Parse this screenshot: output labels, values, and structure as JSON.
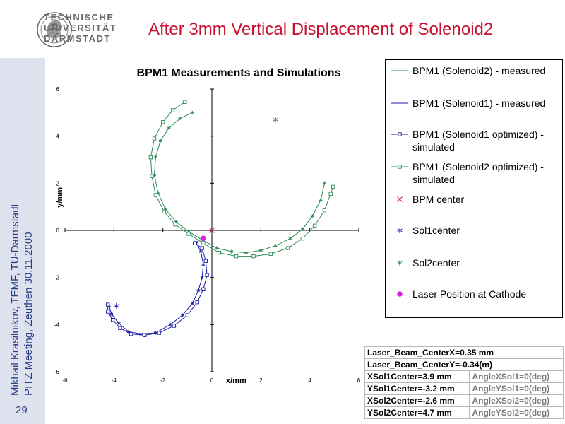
{
  "header": {
    "logo_lines": [
      "TECHNISCHE",
      "UNIVERSITÄT",
      "DARMSTADT"
    ],
    "title": "After 3mm Vertical Displacement of Solenoid2"
  },
  "sidebar": {
    "line1": "Mikhail Krasilnikov, TEMF, TU-Darmstadt",
    "line2": "PITZ Meeting, Zeuthen 30.11.2000",
    "page_number": "29"
  },
  "colors": {
    "title_red": "#c8102e",
    "sidebar_text": "#2b3f86",
    "sidebar_bg": "#dde2ee",
    "sol2": "#2e8b57",
    "sol1": "#1a1aa8",
    "bpm_center": "#c0187a",
    "laser": "#e020e0"
  },
  "chart_data": {
    "type": "scatter",
    "title": "BPM1 Measurements and Simulations",
    "xlabel": "x/mm",
    "ylabel": "y/mm",
    "xlim": [
      -6,
      6
    ],
    "ylim": [
      -6,
      6
    ],
    "xticks": [
      "-6",
      "-4",
      "-2",
      "0",
      "2",
      "4",
      "6"
    ],
    "yticks": [
      "-6",
      "-4",
      "-2",
      "0",
      "2",
      "4",
      "6"
    ],
    "grid": false,
    "legend_position": "right",
    "series": [
      {
        "name": "BPM1 (Solenoid2) - measured",
        "style": "line-star",
        "color": "#2e8b57",
        "points": [
          [
            -0.8,
            5.0
          ],
          [
            -1.3,
            4.75
          ],
          [
            -1.75,
            4.35
          ],
          [
            -2.1,
            3.8
          ],
          [
            -2.3,
            3.1
          ],
          [
            -2.35,
            2.35
          ],
          [
            -2.2,
            1.6
          ],
          [
            -1.9,
            0.9
          ],
          [
            -1.45,
            0.35
          ],
          [
            -0.95,
            -0.05
          ],
          [
            -0.4,
            -0.4
          ],
          [
            0.2,
            -0.75
          ],
          [
            0.8,
            -0.9
          ],
          [
            1.4,
            -0.95
          ],
          [
            2.0,
            -0.85
          ],
          [
            2.6,
            -0.65
          ],
          [
            3.2,
            -0.35
          ],
          [
            3.7,
            0.05
          ],
          [
            4.1,
            0.6
          ],
          [
            4.45,
            1.3
          ],
          [
            4.6,
            2.0
          ]
        ]
      },
      {
        "name": "BPM1 (Solenoid1) - measured",
        "style": "line-star",
        "color": "#1a1aa8",
        "points": [
          [
            -0.65,
            -0.5
          ],
          [
            -0.45,
            -0.9
          ],
          [
            -0.35,
            -1.45
          ],
          [
            -0.4,
            -2.0
          ],
          [
            -0.55,
            -2.55
          ],
          [
            -0.8,
            -3.1
          ],
          [
            -1.2,
            -3.6
          ],
          [
            -1.7,
            -4.0
          ],
          [
            -2.3,
            -4.35
          ],
          [
            -2.9,
            -4.4
          ],
          [
            -3.4,
            -4.3
          ],
          [
            -3.8,
            -3.95
          ],
          [
            -4.1,
            -3.55
          ],
          [
            -4.2,
            -3.2
          ]
        ]
      },
      {
        "name": "BPM1 (Solenoid1 optimized) - simulated",
        "style": "line-square",
        "color": "#1a1aa8",
        "points": [
          [
            -0.7,
            -0.55
          ],
          [
            -0.4,
            -0.75
          ],
          [
            -0.25,
            -1.3
          ],
          [
            -0.2,
            -1.9
          ],
          [
            -0.35,
            -2.5
          ],
          [
            -0.6,
            -3.05
          ],
          [
            -1.0,
            -3.6
          ],
          [
            -1.55,
            -4.05
          ],
          [
            -2.15,
            -4.35
          ],
          [
            -2.75,
            -4.45
          ],
          [
            -3.3,
            -4.4
          ],
          [
            -3.75,
            -4.15
          ],
          [
            -4.05,
            -3.8
          ],
          [
            -4.25,
            -3.45
          ],
          [
            -4.25,
            -3.15
          ]
        ]
      },
      {
        "name": "BPM1 (Solenoid2 optimized) - simulated",
        "style": "line-square",
        "color": "#2e8b57",
        "points": [
          [
            -1.1,
            5.45
          ],
          [
            -1.6,
            5.1
          ],
          [
            -2.0,
            4.6
          ],
          [
            -2.35,
            3.9
          ],
          [
            -2.5,
            3.1
          ],
          [
            -2.45,
            2.3
          ],
          [
            -2.3,
            1.5
          ],
          [
            -1.95,
            0.8
          ],
          [
            -1.5,
            0.25
          ],
          [
            -0.95,
            -0.15
          ],
          [
            -0.35,
            -0.55
          ],
          [
            0.3,
            -0.95
          ],
          [
            1.0,
            -1.1
          ],
          [
            1.7,
            -1.1
          ],
          [
            2.4,
            -1.0
          ],
          [
            3.1,
            -0.75
          ],
          [
            3.7,
            -0.35
          ],
          [
            4.2,
            0.2
          ],
          [
            4.6,
            0.85
          ],
          [
            4.85,
            1.55
          ],
          [
            4.95,
            1.85
          ]
        ]
      },
      {
        "name": "BPM center",
        "style": "cross",
        "color": "#c0187a",
        "points": [
          [
            0.0,
            0.0
          ]
        ]
      },
      {
        "name": "Sol1center",
        "style": "star",
        "color": "#1a1aa8",
        "points": [
          [
            -3.9,
            -3.2
          ]
        ]
      },
      {
        "name": "Sol2center",
        "style": "star",
        "color": "#2e8b57",
        "points": [
          [
            2.6,
            4.7
          ]
        ]
      },
      {
        "name": "Laser Position at Cathode",
        "style": "dot",
        "color": "#e020e0",
        "points": [
          [
            -0.35,
            -0.34
          ]
        ]
      }
    ]
  },
  "legend": [
    {
      "label": "BPM1 (Solenoid2) - measured",
      "style": "line",
      "color": "#2e8b57"
    },
    {
      "label": "BPM1 (Solenoid1) - measured",
      "style": "line",
      "color": "#1a1aa8"
    },
    {
      "label": "BPM1 (Solenoid1 optimized) - simulated",
      "style": "line-square",
      "color": "#1a1aa8"
    },
    {
      "label": "BPM1 (Solenoid2 optimized) - simulated",
      "style": "line-square",
      "color": "#2e8b57"
    },
    {
      "label": "BPM center",
      "style": "cross",
      "color": "#c0187a"
    },
    {
      "label": "Sol1center",
      "style": "star",
      "color": "#1a1aa8"
    },
    {
      "label": "Sol2center",
      "style": "star",
      "color": "#2e8b57"
    },
    {
      "label": "Laser Position at Cathode",
      "style": "dot",
      "color": "#e020e0"
    }
  ],
  "params_table": [
    [
      "Laser_Beam_CenterX=0.35 mm",
      ""
    ],
    [
      "Laser_Beam_CenterY=-0.34(m)",
      ""
    ],
    [
      "XSol1Center=3.9 mm",
      "AngleXSol1=0(deg)"
    ],
    [
      "YSol1Center=-3.2 mm",
      "AngleYSol1=0(deg)"
    ],
    [
      "XSol2Center=-2.6 mm",
      "AngleXSol2=0(deg)"
    ],
    [
      "YSol2Center=4.7 mm",
      "AngleYSol2=0(deg)"
    ]
  ]
}
